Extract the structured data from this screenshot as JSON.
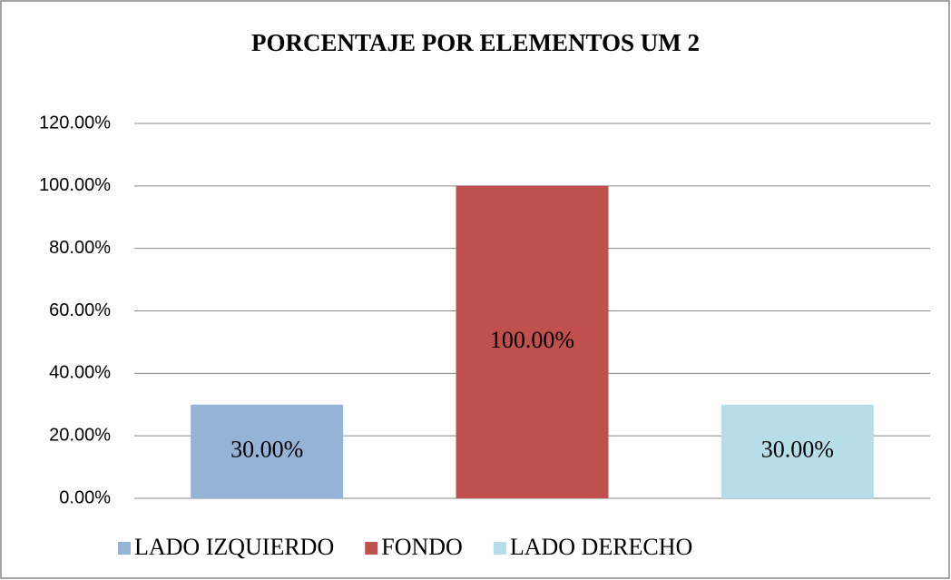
{
  "chart_data": {
    "type": "bar",
    "title": "PORCENTAJE POR ELEMENTOS UM 2",
    "categories": [
      null
    ],
    "series": [
      {
        "name": "LADO IZQUIERDO",
        "color": "#95b3d7",
        "values": [
          30
        ],
        "value_labels": [
          "30.00%"
        ]
      },
      {
        "name": "FONDO",
        "color": "#c0504d",
        "values": [
          100
        ],
        "value_labels": [
          "100.00%"
        ]
      },
      {
        "name": "LADO DERECHO",
        "color": "#b7dee8",
        "values": [
          30
        ],
        "value_labels": [
          "30.00%"
        ]
      }
    ],
    "ylim": [
      0,
      120
    ],
    "yticks": [
      {
        "value": 0,
        "label": "0.00%"
      },
      {
        "value": 20,
        "label": "20.00%"
      },
      {
        "value": 40,
        "label": "40.00%"
      },
      {
        "value": 60,
        "label": "60.00%"
      },
      {
        "value": 80,
        "label": "80.00%"
      },
      {
        "value": 100,
        "label": "100.00%"
      },
      {
        "value": 120,
        "label": "120.00%"
      }
    ],
    "grid": true,
    "legend": "bottom"
  }
}
